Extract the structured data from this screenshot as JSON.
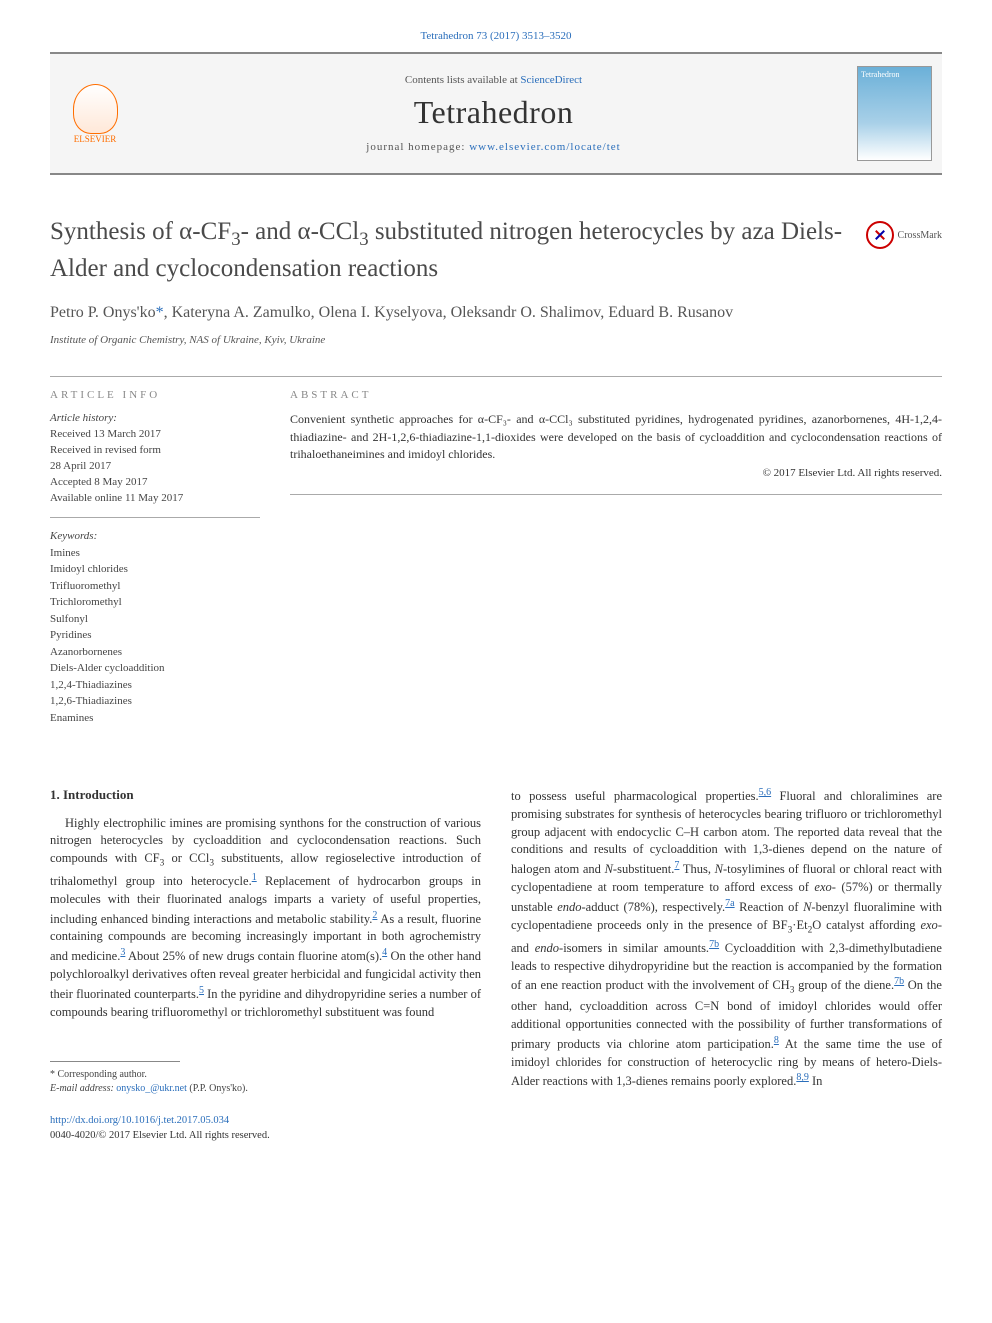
{
  "citation": "Tetrahedron 73 (2017) 3513–3520",
  "header": {
    "contents_text": "Contents lists available at ",
    "contents_link": "ScienceDirect",
    "journal": "Tetrahedron",
    "homepage_label": "journal homepage: ",
    "homepage_url": "www.elsevier.com/locate/tet",
    "publisher": "ELSEVIER",
    "cover_label": "Tetrahedron"
  },
  "crossmark": "CrossMark",
  "title": "Synthesis of α-CF₃- and α-CCl₃ substituted nitrogen heterocycles by aza Diels-Alder and cyclocondensation reactions",
  "authors": "Petro P. Onys'ko*, Kateryna A. Zamulko, Olena I. Kyselyova, Oleksandr O. Shalimov, Eduard B. Rusanov",
  "affiliation": "Institute of Organic Chemistry, NAS of Ukraine, Kyiv, Ukraine",
  "info": {
    "label": "ARTICLE INFO",
    "history_label": "Article history:",
    "history": [
      "Received 13 March 2017",
      "Received in revised form",
      "28 April 2017",
      "Accepted 8 May 2017",
      "Available online 11 May 2017"
    ],
    "keywords_label": "Keywords:",
    "keywords": [
      "Imines",
      "Imidoyl chlorides",
      "Trifluoromethyl",
      "Trichloromethyl",
      "Sulfonyl",
      "Pyridines",
      "Azanorbornenes",
      "Diels-Alder cycloaddition",
      "1,2,4-Thiadiazines",
      "1,2,6-Thiadiazines",
      "Enamines"
    ]
  },
  "abstract": {
    "label": "ABSTRACT",
    "text": "Convenient synthetic approaches for α-CF₃- and α-CCl₃ substituted pyridines, hydrogenated pyridines, azanorbornenes, 4H-1,2,4-thiadiazine- and 2H-1,2,6-thiadiazine-1,1-dioxides were developed on the basis of cycloaddition and cyclocondensation reactions of trihaloethaneimines and imidoyl chlorides.",
    "copyright": "© 2017 Elsevier Ltd. All rights reserved."
  },
  "section_heading": "1. Introduction",
  "col1": "Highly electrophilic imines are promising synthons for the construction of various nitrogen heterocycles by cycloaddition and cyclocondensation reactions. Such compounds with CF₃ or CCl₃ substituents, allow regioselective introduction of trihalomethyl group into heterocycle.¹ Replacement of hydrocarbon groups in molecules with their fluorinated analogs imparts a variety of useful properties, including enhanced binding interactions and metabolic stability.² As a result, fluorine containing compounds are becoming increasingly important in both agrochemistry and medicine.³ About 25% of new drugs contain fluorine atom(s).⁴ On the other hand polychloroalkyl derivatives often reveal greater herbicidal and fungicidal activity then their fluorinated counterparts.⁵ In the pyridine and dihydropyridine series a number of compounds bearing trifluoromethyl or trichloromethyl substituent was found",
  "col2": "to possess useful pharmacological properties.⁵,⁶ Fluoral and chloralimines are promising substrates for synthesis of heterocycles bearing trifluoro or trichloromethyl group adjacent with endocyclic C–H carbon atom. The reported data reveal that the conditions and results of cycloaddition with 1,3-dienes depend on the nature of halogen atom and N-substituent.⁷ Thus, N-tosylimines of fluoral or chloral react with cyclopentadiene at room temperature to afford excess of exo- (57%) or thermally unstable endo-adduct (78%), respectively.⁷ᵃ Reaction of N-benzyl fluoralimine with cyclopentadiene proceeds only in the presence of BF₃·Et₂O catalyst affording exo- and endo-isomers in similar amounts.⁷ᵇ Cycloaddition with 2,3-dimethylbutadiene leads to respective dihydropyridine but the reaction is accompanied by the formation of an ene reaction product with the involvement of CH₃ group of the diene.⁷ᵇ On the other hand, cycloaddition across C=N bond of imidoyl chlorides would offer additional opportunities connected with the possibility of further transformations of primary products via chlorine atom participation.⁸ At the same time the use of imidoyl chlorides for construction of heterocyclic ring by means of hetero-Diels-Alder reactions with 1,3-dienes remains poorly explored.⁸,⁹ In",
  "footnote": {
    "corr": "* Corresponding author.",
    "email_label": "E-mail address: ",
    "email": "onysko_@ukr.net",
    "email_suffix": " (P.P. Onys'ko)."
  },
  "doi": {
    "url": "http://dx.doi.org/10.1016/j.tet.2017.05.034",
    "issn": "0040-4020/© 2017 Elsevier Ltd. All rights reserved."
  },
  "colors": {
    "link": "#2a6ebb",
    "elsevier": "#ff6e00",
    "text": "#333333",
    "muted": "#555555",
    "rule": "#888888"
  }
}
